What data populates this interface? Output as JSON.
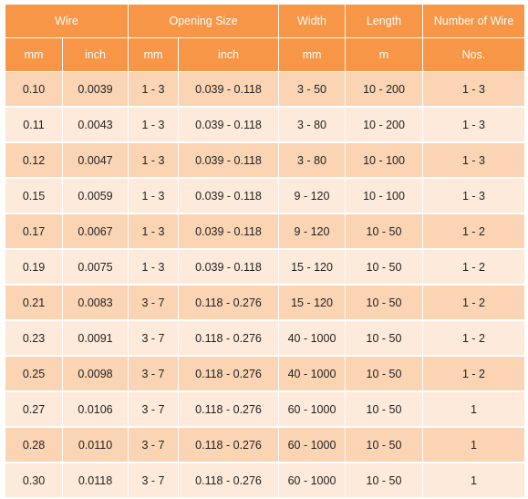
{
  "table": {
    "group_headers": [
      "Wire",
      "Opening Size",
      "Width",
      "Length",
      "Number of Wire"
    ],
    "unit_headers": [
      "mm",
      "inch",
      "mm",
      "inch",
      "mm",
      "m",
      "Nos."
    ],
    "rows": [
      [
        "0.10",
        "0.0039",
        "1 - 3",
        "0.039 - 0.118",
        "3 - 50",
        "10 - 200",
        "1 - 3"
      ],
      [
        "0.11",
        "0.0043",
        "1 - 3",
        "0.039 - 0.118",
        "3 - 80",
        "10 - 200",
        "1 - 3"
      ],
      [
        "0.12",
        "0.0047",
        "1 - 3",
        "0.039 - 0.118",
        "3 - 80",
        "10 - 100",
        "1 - 3"
      ],
      [
        "0.15",
        "0.0059",
        "1 - 3",
        "0.039 - 0.118",
        "9 - 120",
        "10 - 100",
        "1 - 3"
      ],
      [
        "0.17",
        "0.0067",
        "1 - 3",
        "0.039 - 0.118",
        "9 - 120",
        "10 - 50",
        "1 - 2"
      ],
      [
        "0.19",
        "0.0075",
        "1 - 3",
        "0.039 - 0.118",
        "15 - 120",
        "10 - 50",
        "1 - 2"
      ],
      [
        "0.21",
        "0.0083",
        "3 - 7",
        "0.118 - 0.276",
        "15 - 120",
        "10 - 50",
        "1 - 2"
      ],
      [
        "0.23",
        "0.0091",
        "3 - 7",
        "0.118 - 0.276",
        "40 - 1000",
        "10 - 50",
        "1 - 2"
      ],
      [
        "0.25",
        "0.0098",
        "3 - 7",
        "0.118 - 0.276",
        "40 - 1000",
        "10 - 50",
        "1 - 2"
      ],
      [
        "0.27",
        "0.0106",
        "3 - 7",
        "0.118 - 0.276",
        "60 - 1000",
        "10 - 50",
        "1"
      ],
      [
        "0.28",
        "0.0110",
        "3 - 7",
        "0.118 - 0.276",
        "60 - 1000",
        "10 - 50",
        "1"
      ],
      [
        "0.30",
        "0.0118",
        "3 - 7",
        "0.118 - 0.276",
        "60 - 1000",
        "10 - 50",
        "1"
      ]
    ]
  },
  "colors": {
    "header": "#f79646",
    "row_odd": "#fbd4b4",
    "row_even": "#fdeada"
  }
}
